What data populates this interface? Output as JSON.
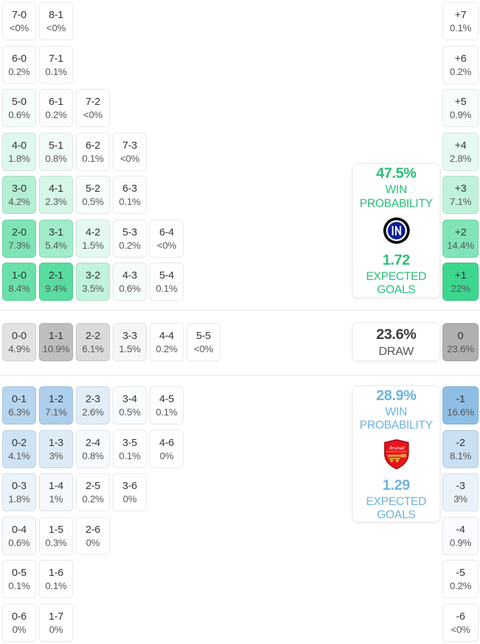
{
  "colors": {
    "home_accent": "#2abf77",
    "away_accent": "#6fb3de",
    "divider": "#e6e6e6",
    "cell_green_base": "#2fd387",
    "cell_blue_base": "#5b9fd8",
    "cell_gray_base": "#969696"
  },
  "cards": {
    "home": {
      "team": "Inter",
      "probability": "47.5%",
      "win_label_1": "WIN",
      "win_label_2": "PROBABILITY",
      "expected_goals": "1.72",
      "goals_label_1": "EXPECTED",
      "goals_label_2": "GOALS"
    },
    "draw": {
      "probability": "23.6%",
      "label": "DRAW"
    },
    "away": {
      "team": "Arsenal",
      "probability": "28.9%",
      "win_label_1": "WIN",
      "win_label_2": "PROBABILITY",
      "expected_goals": "1.29",
      "goals_label_1": "EXPECTED",
      "goals_label_2": "GOALS"
    }
  },
  "chart_data": {
    "type": "heatmap",
    "title": "Correct score and goal-difference probability matrix",
    "summary": {
      "home_team": "Inter",
      "away_team": "Arsenal",
      "home_win_pct": 47.5,
      "draw_pct": 23.6,
      "away_win_pct": 28.9,
      "home_expected_goals": 1.72,
      "away_expected_goals": 1.29
    },
    "home_rows": [
      [
        {
          "score": "7-0",
          "pct": "<0%",
          "p": 0.03
        },
        {
          "score": "8-1",
          "pct": "<0%",
          "p": 0.03
        }
      ],
      [
        {
          "score": "6-0",
          "pct": "0.2%",
          "p": 0.2
        },
        {
          "score": "7-1",
          "pct": "0.1%",
          "p": 0.1
        }
      ],
      [
        {
          "score": "5-0",
          "pct": "0.6%",
          "p": 0.6
        },
        {
          "score": "6-1",
          "pct": "0.2%",
          "p": 0.2
        },
        {
          "score": "7-2",
          "pct": "<0%",
          "p": 0.03
        }
      ],
      [
        {
          "score": "4-0",
          "pct": "1.8%",
          "p": 1.8
        },
        {
          "score": "5-1",
          "pct": "0.8%",
          "p": 0.8
        },
        {
          "score": "6-2",
          "pct": "0.1%",
          "p": 0.1
        },
        {
          "score": "7-3",
          "pct": "<0%",
          "p": 0.03
        }
      ],
      [
        {
          "score": "3-0",
          "pct": "4.2%",
          "p": 4.2
        },
        {
          "score": "4-1",
          "pct": "2.3%",
          "p": 2.3
        },
        {
          "score": "5-2",
          "pct": "0.5%",
          "p": 0.5
        },
        {
          "score": "6-3",
          "pct": "0.1%",
          "p": 0.1
        }
      ],
      [
        {
          "score": "2-0",
          "pct": "7.3%",
          "p": 7.3
        },
        {
          "score": "3-1",
          "pct": "5.4%",
          "p": 5.4
        },
        {
          "score": "4-2",
          "pct": "1.5%",
          "p": 1.5
        },
        {
          "score": "5-3",
          "pct": "0.2%",
          "p": 0.2
        },
        {
          "score": "6-4",
          "pct": "<0%",
          "p": 0.03
        }
      ],
      [
        {
          "score": "1-0",
          "pct": "8.4%",
          "p": 8.4
        },
        {
          "score": "2-1",
          "pct": "9.4%",
          "p": 9.4
        },
        {
          "score": "3-2",
          "pct": "3.5%",
          "p": 3.5
        },
        {
          "score": "4-3",
          "pct": "0.6%",
          "p": 0.6
        },
        {
          "score": "5-4",
          "pct": "0.1%",
          "p": 0.1
        }
      ]
    ],
    "draw_row": [
      {
        "score": "0-0",
        "pct": "4.9%",
        "p": 4.9
      },
      {
        "score": "1-1",
        "pct": "10.9%",
        "p": 10.9
      },
      {
        "score": "2-2",
        "pct": "6.1%",
        "p": 6.1
      },
      {
        "score": "3-3",
        "pct": "1.5%",
        "p": 1.5
      },
      {
        "score": "4-4",
        "pct": "0.2%",
        "p": 0.2
      },
      {
        "score": "5-5",
        "pct": "<0%",
        "p": 0.03
      }
    ],
    "away_rows": [
      [
        {
          "score": "0-1",
          "pct": "6.3%",
          "p": 6.3
        },
        {
          "score": "1-2",
          "pct": "7.1%",
          "p": 7.1
        },
        {
          "score": "2-3",
          "pct": "2.6%",
          "p": 2.6
        },
        {
          "score": "3-4",
          "pct": "0.5%",
          "p": 0.5
        },
        {
          "score": "4-5",
          "pct": "0.1%",
          "p": 0.1
        }
      ],
      [
        {
          "score": "0-2",
          "pct": "4.1%",
          "p": 4.1
        },
        {
          "score": "1-3",
          "pct": "3%",
          "p": 3
        },
        {
          "score": "2-4",
          "pct": "0.8%",
          "p": 0.8
        },
        {
          "score": "3-5",
          "pct": "0.1%",
          "p": 0.1
        },
        {
          "score": "4-6",
          "pct": "0%",
          "p": 0.02
        }
      ],
      [
        {
          "score": "0-3",
          "pct": "1.8%",
          "p": 1.8
        },
        {
          "score": "1-4",
          "pct": "1%",
          "p": 1
        },
        {
          "score": "2-5",
          "pct": "0.2%",
          "p": 0.2
        },
        {
          "score": "3-6",
          "pct": "0%",
          "p": 0.02
        }
      ],
      [
        {
          "score": "0-4",
          "pct": "0.6%",
          "p": 0.6
        },
        {
          "score": "1-5",
          "pct": "0.3%",
          "p": 0.3
        },
        {
          "score": "2-6",
          "pct": "0%",
          "p": 0.02
        }
      ],
      [
        {
          "score": "0-5",
          "pct": "0.1%",
          "p": 0.1
        },
        {
          "score": "1-6",
          "pct": "0.1%",
          "p": 0.1
        }
      ],
      [
        {
          "score": "0-6",
          "pct": "0%",
          "p": 0.02
        },
        {
          "score": "1-7",
          "pct": "0%",
          "p": 0.02
        }
      ]
    ],
    "goal_diff_home": [
      {
        "label": "+7",
        "pct": "0.1%",
        "p": 0.1
      },
      {
        "label": "+6",
        "pct": "0.2%",
        "p": 0.2
      },
      {
        "label": "+5",
        "pct": "0.9%",
        "p": 0.9
      },
      {
        "label": "+4",
        "pct": "2.8%",
        "p": 2.8
      },
      {
        "label": "+3",
        "pct": "7.1%",
        "p": 7.1
      },
      {
        "label": "+2",
        "pct": "14.4%",
        "p": 14.4
      },
      {
        "label": "+1",
        "pct": "22%",
        "p": 22
      }
    ],
    "goal_diff_draw": {
      "label": "0",
      "pct": "23.6%",
      "p": 23.6
    },
    "goal_diff_away": [
      {
        "label": "-1",
        "pct": "16.6%",
        "p": 16.6
      },
      {
        "label": "-2",
        "pct": "8.1%",
        "p": 8.1
      },
      {
        "label": "-3",
        "pct": "3%",
        "p": 3
      },
      {
        "label": "-4",
        "pct": "0.9%",
        "p": 0.9
      },
      {
        "label": "-5",
        "pct": "0.2%",
        "p": 0.2
      },
      {
        "label": "-6",
        "pct": "<0%",
        "p": 0.03
      }
    ]
  }
}
